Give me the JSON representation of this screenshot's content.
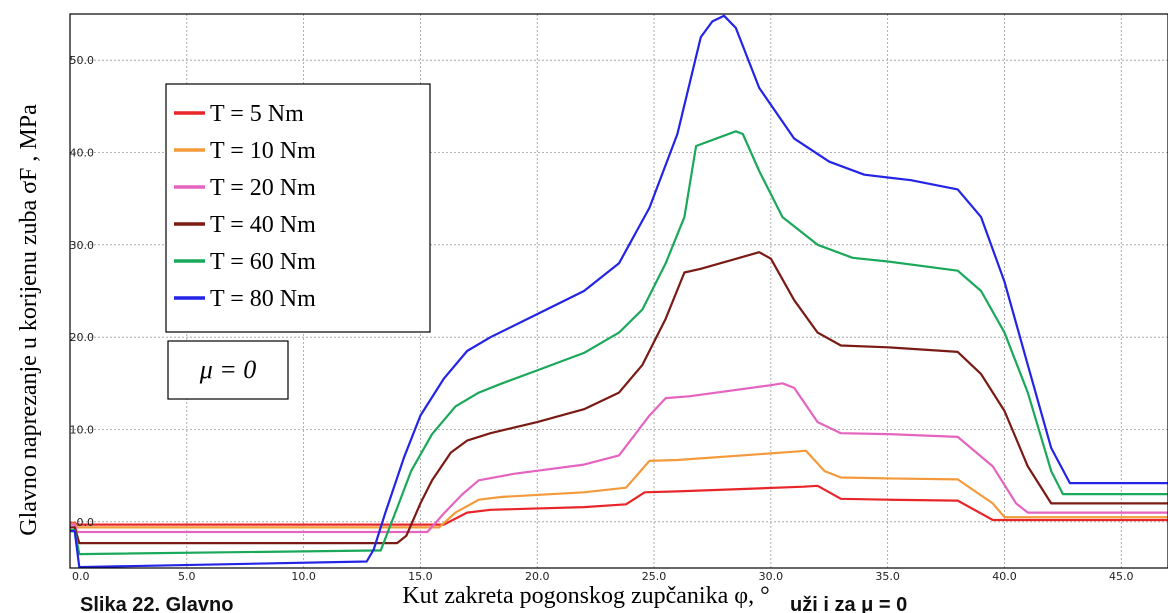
{
  "chart_data": {
    "type": "line",
    "xlabel": "Kut zakreta pogonskog zupčanika φ, °",
    "ylabel": "Glavno naprezanje u korijenu zuba σF , MPa",
    "xlim": [
      0,
      47
    ],
    "ylim": [
      -5,
      55
    ],
    "x_ticks": [
      "0.0",
      "5.0",
      "10.0",
      "15.0",
      "20.0",
      "25.0",
      "30.0",
      "35.0",
      "40.0",
      "45.0"
    ],
    "y_ticks": [
      "0.0",
      "10.0",
      "20.0",
      "30.0",
      "40.0",
      "50.0"
    ],
    "grid": true,
    "legend_position": "top-left",
    "annotation": "μ = 0",
    "caption_fragment": "Slika 22. Glavno",
    "caption_fragment_right": "uži i za μ = 0",
    "series": [
      {
        "name": "T = 5 Nm",
        "color": "#e8262a",
        "points": [
          [
            0,
            -0.1
          ],
          [
            0.2,
            -0.1
          ],
          [
            0.3,
            -0.3
          ],
          [
            16.0,
            -0.3
          ],
          [
            17.0,
            1.0
          ],
          [
            18.0,
            1.3
          ],
          [
            22.0,
            1.6
          ],
          [
            23.8,
            1.9
          ],
          [
            24.6,
            3.2
          ],
          [
            26.0,
            3.3
          ],
          [
            31.4,
            3.8
          ],
          [
            32.0,
            3.9
          ],
          [
            33.0,
            2.5
          ],
          [
            35.0,
            2.4
          ],
          [
            38.0,
            2.3
          ],
          [
            39.5,
            0.2
          ],
          [
            47,
            0.2
          ]
        ]
      },
      {
        "name": "T = 10 Nm",
        "color": "#f39a3c",
        "points": [
          [
            0,
            -0.2
          ],
          [
            0.2,
            -0.2
          ],
          [
            0.3,
            -0.6
          ],
          [
            15.8,
            -0.6
          ],
          [
            16.5,
            1.0
          ],
          [
            17.5,
            2.4
          ],
          [
            18.5,
            2.7
          ],
          [
            22.0,
            3.2
          ],
          [
            23.8,
            3.7
          ],
          [
            24.8,
            6.6
          ],
          [
            26.0,
            6.7
          ],
          [
            31.0,
            7.6
          ],
          [
            31.5,
            7.7
          ],
          [
            32.3,
            5.5
          ],
          [
            33.0,
            4.8
          ],
          [
            35.0,
            4.7
          ],
          [
            38.0,
            4.6
          ],
          [
            39.5,
            2.0
          ],
          [
            40.0,
            0.5
          ],
          [
            47,
            0.5
          ]
        ]
      },
      {
        "name": "T = 20 Nm",
        "color": "#e564c0",
        "points": [
          [
            0,
            -0.3
          ],
          [
            0.2,
            -0.3
          ],
          [
            0.3,
            -1.1
          ],
          [
            15.3,
            -1.1
          ],
          [
            16.0,
            0.9
          ],
          [
            16.8,
            3.0
          ],
          [
            17.5,
            4.5
          ],
          [
            19.0,
            5.2
          ],
          [
            22.0,
            6.2
          ],
          [
            23.5,
            7.2
          ],
          [
            24.8,
            11.5
          ],
          [
            25.5,
            13.4
          ],
          [
            26.5,
            13.6
          ],
          [
            30.0,
            14.8
          ],
          [
            30.5,
            15.0
          ],
          [
            31.0,
            14.5
          ],
          [
            32.0,
            10.8
          ],
          [
            33.0,
            9.6
          ],
          [
            35.0,
            9.5
          ],
          [
            38.0,
            9.2
          ],
          [
            39.5,
            6.0
          ],
          [
            40.5,
            2.0
          ],
          [
            41.0,
            1.0
          ],
          [
            47,
            1.0
          ]
        ]
      },
      {
        "name": "T = 40 Nm",
        "color": "#7a1a14",
        "points": [
          [
            0,
            -0.6
          ],
          [
            0.2,
            -0.6
          ],
          [
            0.4,
            -2.3
          ],
          [
            14.0,
            -2.3
          ],
          [
            14.4,
            -1.5
          ],
          [
            15.0,
            2.0
          ],
          [
            15.5,
            4.5
          ],
          [
            16.3,
            7.5
          ],
          [
            17.0,
            8.8
          ],
          [
            18.0,
            9.6
          ],
          [
            20.0,
            10.8
          ],
          [
            22.0,
            12.2
          ],
          [
            23.5,
            14.0
          ],
          [
            24.5,
            17.0
          ],
          [
            25.5,
            22.0
          ],
          [
            26.3,
            27.0
          ],
          [
            27.0,
            27.4
          ],
          [
            29.5,
            29.2
          ],
          [
            30.0,
            28.5
          ],
          [
            31.0,
            24.0
          ],
          [
            32.0,
            20.5
          ],
          [
            33.0,
            19.1
          ],
          [
            35.0,
            18.9
          ],
          [
            38.0,
            18.4
          ],
          [
            39.0,
            16.0
          ],
          [
            40.0,
            12.0
          ],
          [
            41.0,
            6.0
          ],
          [
            42.0,
            2.0
          ],
          [
            47,
            2.0
          ]
        ]
      },
      {
        "name": "T = 60 Nm",
        "color": "#1aa85a",
        "points": [
          [
            0,
            -0.9
          ],
          [
            0.2,
            -0.9
          ],
          [
            0.4,
            -3.5
          ],
          [
            13.0,
            -3.1
          ],
          [
            13.3,
            -3.1
          ],
          [
            14.0,
            1.5
          ],
          [
            14.6,
            5.5
          ],
          [
            15.5,
            9.5
          ],
          [
            16.5,
            12.5
          ],
          [
            17.5,
            14.0
          ],
          [
            18.5,
            15.0
          ],
          [
            20.0,
            16.4
          ],
          [
            22.0,
            18.3
          ],
          [
            23.5,
            20.5
          ],
          [
            24.5,
            23.0
          ],
          [
            25.5,
            28.0
          ],
          [
            26.3,
            33.0
          ],
          [
            26.8,
            40.7
          ],
          [
            28.5,
            42.3
          ],
          [
            28.8,
            42.0
          ],
          [
            29.5,
            38.0
          ],
          [
            30.5,
            33.0
          ],
          [
            32.0,
            30.0
          ],
          [
            33.5,
            28.6
          ],
          [
            35.0,
            28.2
          ],
          [
            38.0,
            27.2
          ],
          [
            39.0,
            25.0
          ],
          [
            40.0,
            20.5
          ],
          [
            41.0,
            14.0
          ],
          [
            42.0,
            5.5
          ],
          [
            42.5,
            3.0
          ],
          [
            47,
            3.0
          ]
        ]
      },
      {
        "name": "T = 80 Nm",
        "color": "#2424e6",
        "points": [
          [
            0,
            -1.0
          ],
          [
            0.2,
            -1.0
          ],
          [
            0.4,
            -4.9
          ],
          [
            12.7,
            -4.3
          ],
          [
            13.0,
            -3.0
          ],
          [
            13.5,
            1.0
          ],
          [
            14.3,
            7.0
          ],
          [
            15.0,
            11.5
          ],
          [
            16.0,
            15.5
          ],
          [
            17.0,
            18.5
          ],
          [
            18.0,
            20.0
          ],
          [
            20.0,
            22.5
          ],
          [
            22.0,
            25.0
          ],
          [
            23.5,
            28.0
          ],
          [
            24.8,
            34.0
          ],
          [
            26.0,
            42.0
          ],
          [
            27.0,
            52.5
          ],
          [
            27.5,
            54.2
          ],
          [
            28.0,
            54.8
          ],
          [
            28.5,
            53.5
          ],
          [
            29.5,
            47.0
          ],
          [
            31.0,
            41.5
          ],
          [
            32.5,
            39.0
          ],
          [
            34.0,
            37.6
          ],
          [
            36.0,
            37.0
          ],
          [
            38.0,
            36.0
          ],
          [
            39.0,
            33.0
          ],
          [
            40.0,
            26.0
          ],
          [
            41.0,
            17.0
          ],
          [
            42.0,
            8.0
          ],
          [
            42.8,
            4.2
          ],
          [
            47,
            4.2
          ]
        ]
      }
    ]
  }
}
